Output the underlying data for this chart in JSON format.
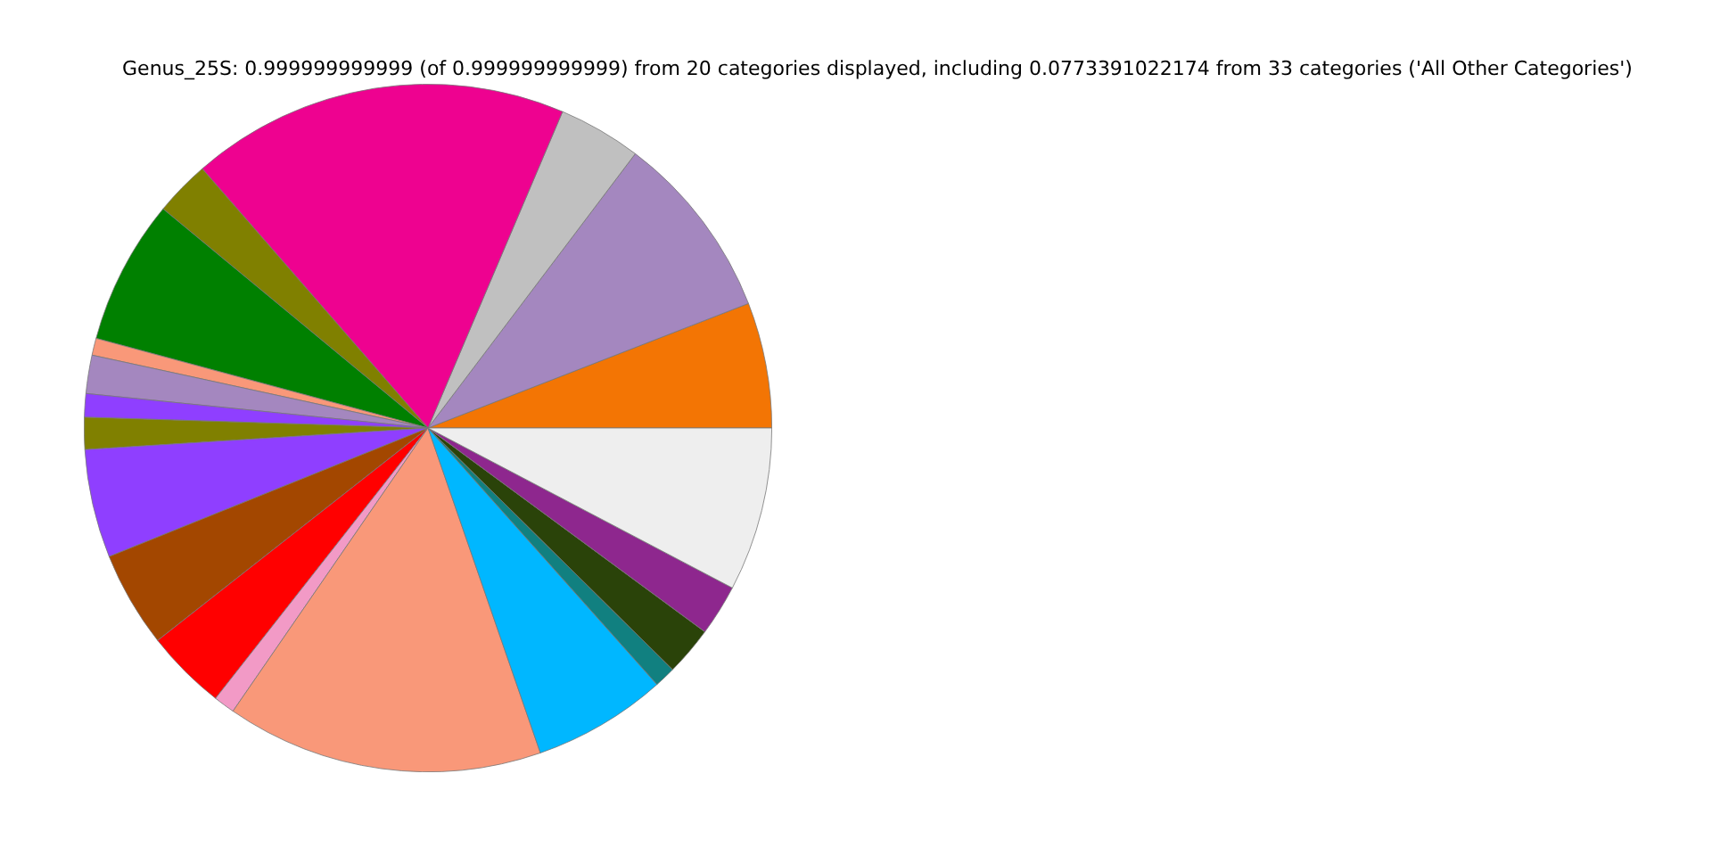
{
  "chart_data": {
    "type": "pie",
    "title": "Genus_25S: 0.999999999999 (of 0.999999999999) from 20 categories displayed, including 0.0773391022174 from 33 categories ('All Other Categories')",
    "categories": [
      null,
      null,
      null,
      null,
      null,
      null,
      null,
      null,
      null,
      null,
      null,
      null,
      null,
      null,
      null,
      null,
      null,
      null,
      null,
      null
    ],
    "values": [
      5.9,
      8.8,
      3.9,
      17.8,
      2.6,
      6.8,
      0.8,
      1.8,
      1.1,
      1.5,
      5.1,
      4.5,
      3.8,
      1.0,
      14.9,
      6.3,
      1.0,
      2.3,
      2.4,
      7.7
    ],
    "colors": [
      "#f37504",
      "#a487bf",
      "#c0c0c0",
      "#ee0290",
      "#808000",
      "#008000",
      "#f99879",
      "#a487bf",
      "#8f3fff",
      "#808000",
      "#8f3fff",
      "#a34700",
      "#ff0000",
      "#f29ac6",
      "#f99879",
      "#00b7ff",
      "#118080",
      "#2a4309",
      "#8e278e",
      "#eeeeee"
    ],
    "legend": false
  }
}
